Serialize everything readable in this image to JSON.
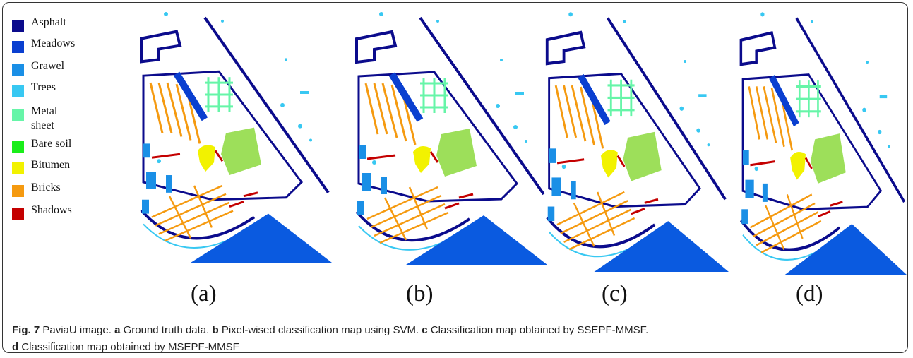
{
  "legend": [
    {
      "label": "Asphalt",
      "color": "#0b0b8c"
    },
    {
      "label": "Meadows",
      "color": "#0a3fd0"
    },
    {
      "label": "Grawel",
      "color": "#1a8fe6"
    },
    {
      "label": "Trees",
      "color": "#38c8f2"
    },
    {
      "label": "Metal sheet",
      "color": "#66f5a8"
    },
    {
      "label": "Bare soil",
      "color": "#1aee1a"
    },
    {
      "label": "Bitumen",
      "color": "#f2f200"
    },
    {
      "label": "Bricks",
      "color": "#f59a10"
    },
    {
      "label": "Shadows",
      "color": "#c40000"
    }
  ],
  "panels": [
    "(a)",
    "(b)",
    "(c)",
    "(d)"
  ],
  "caption": {
    "figure": "Fig. 7",
    "text": "PaviaU image.",
    "items": [
      {
        "key": "a",
        "text": "Ground truth data."
      },
      {
        "key": "b",
        "text": "Pixel-wised classification map using SVM."
      },
      {
        "key": "c",
        "text": "Classification map obtained by SSEPF-MMSF."
      },
      {
        "key": "d",
        "text": "Classification map obtained by MSEPF-MMSF"
      }
    ]
  }
}
